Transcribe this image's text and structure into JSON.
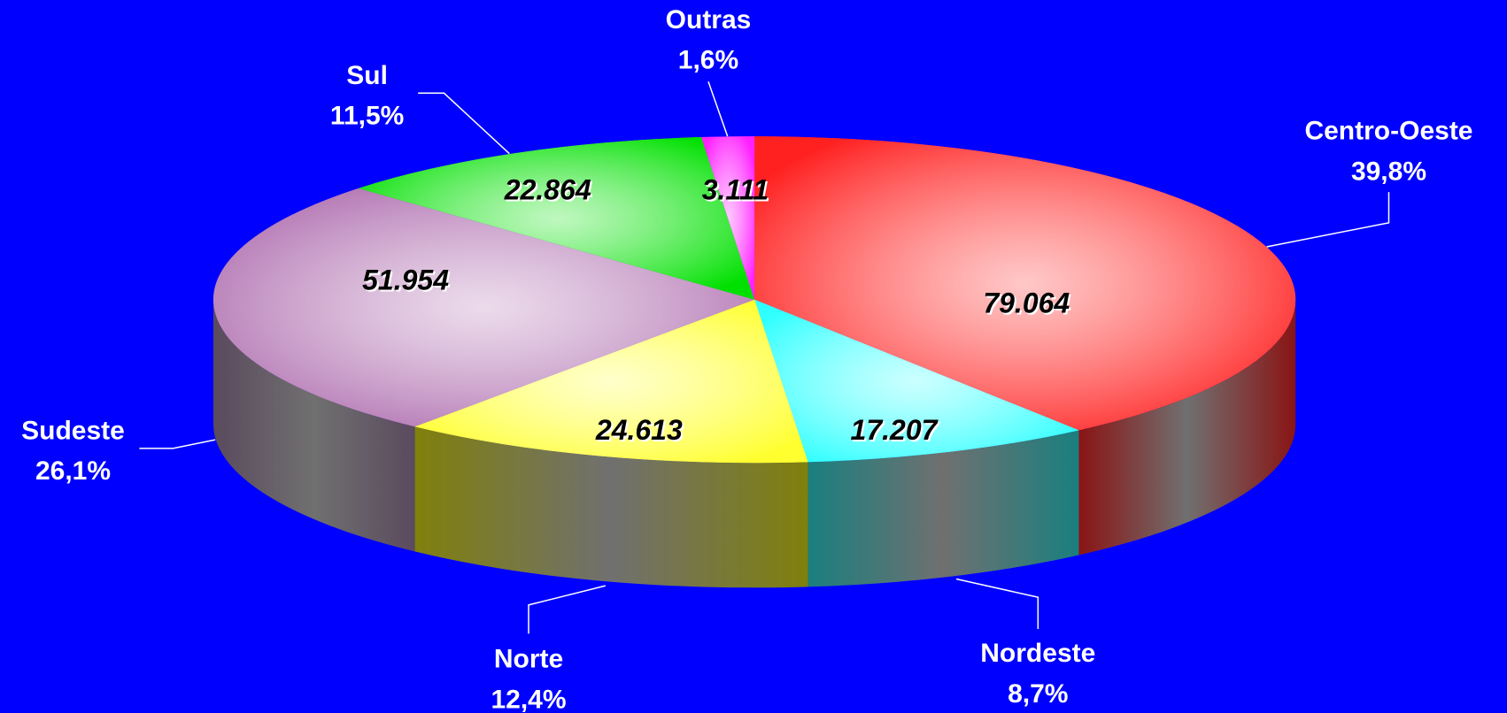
{
  "chart_data": {
    "type": "pie3d",
    "categories": [
      "Centro-Oeste",
      "Nordeste",
      "Norte",
      "Sudeste",
      "Sul",
      "Outras"
    ],
    "values": [
      79064,
      17207,
      24613,
      51954,
      22864,
      3111
    ],
    "value_labels": [
      "79.064",
      "17.207",
      "24.613",
      "51.954",
      "22.864",
      "3.111"
    ],
    "percent_labels": [
      "39,8%",
      "8,7%",
      "12,4%",
      "26,1%",
      "11,5%",
      "1,6%"
    ],
    "colors": [
      "#ff2020",
      "#30ffff",
      "#ffff30",
      "#b070b0",
      "#00e000",
      "#ff20ff"
    ],
    "side_colors": [
      "#8a1414",
      "#1a7f7f",
      "#80800c",
      "#5a4a5e",
      "#0a6a0a",
      "#8a108a"
    ]
  }
}
